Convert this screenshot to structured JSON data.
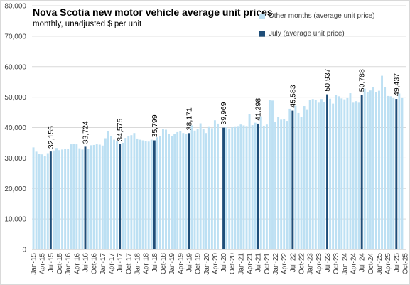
{
  "chart_data": {
    "type": "bar",
    "title": "Nova Scotia new motor vehicle average unit prices",
    "subtitle": "monthly, unadjusted $ per unit",
    "ylim": [
      0,
      80000
    ],
    "y_ticks": [
      "0",
      "10,000",
      "20,000",
      "30,000",
      "40,000",
      "50,000",
      "60,000",
      "70,000",
      "80,000"
    ],
    "x_tick_labels": [
      "Jan-15",
      "Apr-15",
      "Jul-15",
      "Oct-15",
      "Jan-16",
      "Apr-16",
      "Jul-16",
      "Oct-16",
      "Jan-17",
      "Apr-17",
      "Jul-17",
      "Oct-17",
      "Jan-18",
      "Apr-18",
      "Jul-18",
      "Oct-18",
      "Jan-19",
      "Apr-19",
      "Jul-19",
      "Oct-19",
      "Jan-20",
      "Apr-20",
      "Jul-20",
      "Oct-20",
      "Jan-21",
      "Apr-21",
      "Jul-21",
      "Oct-21",
      "Jan-22",
      "Apr-22",
      "Jul-22",
      "Oct-22",
      "Jan-23",
      "Apr-23",
      "Jul-23",
      "Oct-23",
      "Jan-24",
      "Apr-24",
      "Jul-24",
      "Oct-24",
      "Jan-25",
      "Apr-25",
      "Jul-25",
      "Oct-25"
    ],
    "legend": [
      {
        "name": "Other months (average unit price)",
        "color": "#bde0f3"
      },
      {
        "name": "July (average unit price)",
        "color": "#1f4e79"
      }
    ],
    "other_color": "#bde0f3",
    "july_color": "#1f4e79",
    "series": [
      {
        "name": "Other months (average unit price)",
        "values": [
          33500,
          32100,
          31400,
          31200,
          30700,
          31600,
          null,
          32500,
          33300,
          32600,
          32800,
          32900,
          33000,
          34500,
          34600,
          34500,
          33200,
          32800,
          null,
          33000,
          34200,
          34300,
          34500,
          34400,
          34100,
          36500,
          38800,
          37200,
          36000,
          35600,
          null,
          35000,
          36600,
          37100,
          37500,
          38200,
          36400,
          36000,
          35800,
          35500,
          35400,
          36000,
          null,
          36800,
          37200,
          39600,
          39300,
          38000,
          37100,
          37800,
          38500,
          38800,
          38200,
          37800,
          null,
          40700,
          39000,
          39600,
          41400,
          39600,
          38200,
          40400,
          39800,
          42400,
          41300,
          null,
          null,
          40100,
          39700,
          40100,
          40400,
          40500,
          41000,
          40700,
          40500,
          44400,
          40800,
          41600,
          null,
          43700,
          40600,
          41000,
          49000,
          48900,
          41900,
          43400,
          42600,
          42900,
          42200,
          46200,
          null,
          47200,
          44800,
          43400,
          47100,
          45800,
          49000,
          49400,
          49100,
          48200,
          49400,
          48300,
          null,
          49500,
          47900,
          50800,
          50300,
          49600,
          49300,
          49700,
          51300,
          48200,
          48700,
          48200,
          null,
          52800,
          51600,
          52200,
          53200,
          51600,
          52100,
          57000,
          53200,
          50400,
          50300,
          49700,
          null,
          51200,
          49700
        ]
      },
      {
        "name": "July (average unit price)",
        "values": [
          null,
          null,
          null,
          null,
          null,
          null,
          32155,
          null,
          null,
          null,
          null,
          null,
          null,
          null,
          null,
          null,
          null,
          null,
          33724,
          null,
          null,
          null,
          null,
          null,
          null,
          null,
          null,
          null,
          null,
          null,
          34575,
          null,
          null,
          null,
          null,
          null,
          null,
          null,
          null,
          null,
          null,
          null,
          35799,
          null,
          null,
          null,
          null,
          null,
          null,
          null,
          null,
          null,
          null,
          null,
          38171,
          null,
          null,
          null,
          null,
          null,
          null,
          null,
          null,
          null,
          null,
          null,
          39969,
          null,
          null,
          null,
          null,
          null,
          null,
          null,
          null,
          null,
          null,
          null,
          41298,
          null,
          null,
          null,
          null,
          null,
          null,
          null,
          null,
          null,
          null,
          null,
          45583,
          null,
          null,
          null,
          null,
          null,
          null,
          null,
          null,
          null,
          null,
          null,
          50937,
          null,
          null,
          null,
          null,
          null,
          null,
          null,
          null,
          null,
          null,
          null,
          50788,
          null,
          null,
          null,
          null,
          null,
          null,
          null,
          null,
          null,
          null,
          null,
          49437,
          null,
          null
        ]
      }
    ],
    "july_labels": [
      "32,155",
      "33,724",
      "34,575",
      "35,799",
      "38,171",
      "39,969",
      "41,298",
      "45,583",
      "50,937",
      "50,788",
      "49,437"
    ]
  }
}
